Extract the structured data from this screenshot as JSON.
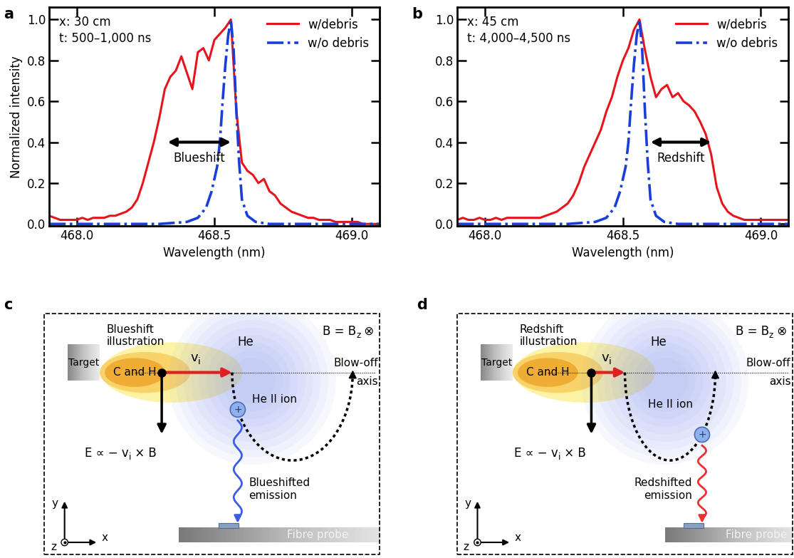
{
  "chart_data": [
    {
      "type": "line",
      "title": "a",
      "x_label": "Wavelength (nm)",
      "y_label": "Normalized intensity",
      "xlim": [
        467.9,
        469.1
      ],
      "ylim": [
        -0.01,
        1.06
      ],
      "xticks": [
        468.0,
        468.5,
        469.0
      ],
      "yticks": [
        0.0,
        0.2,
        0.4,
        0.6,
        0.8,
        1.0
      ],
      "legend": "upper right",
      "annotations": [
        {
          "text": "x: 30 cm"
        },
        {
          "text": "t: 500–1,000 ns"
        },
        {
          "text": "Blueshift",
          "x": [
            468.33,
            468.56
          ],
          "y": 0.4
        }
      ],
      "series": [
        {
          "name": "w/debris",
          "color": "#e8141c",
          "line_style": "solid",
          "x": [
            467.9,
            467.92,
            467.94,
            467.96,
            467.98,
            468.0,
            468.02,
            468.04,
            468.06,
            468.08,
            468.1,
            468.12,
            468.14,
            468.16,
            468.18,
            468.2,
            468.22,
            468.24,
            468.26,
            468.28,
            468.3,
            468.32,
            468.34,
            468.36,
            468.38,
            468.4,
            468.42,
            468.44,
            468.46,
            468.48,
            468.5,
            468.52,
            468.54,
            468.56,
            468.58,
            468.6,
            468.62,
            468.64,
            468.66,
            468.68,
            468.7,
            468.72,
            468.74,
            468.76,
            468.78,
            468.8,
            468.82,
            468.84,
            468.86,
            468.88,
            468.9,
            468.92,
            468.94,
            468.96,
            468.98,
            469.0,
            469.02,
            469.04,
            469.06,
            469.08,
            469.1
          ],
          "values": [
            0.04,
            0.03,
            0.02,
            0.02,
            0.02,
            0.02,
            0.03,
            0.02,
            0.03,
            0.03,
            0.03,
            0.04,
            0.04,
            0.05,
            0.06,
            0.08,
            0.12,
            0.2,
            0.3,
            0.4,
            0.52,
            0.66,
            0.72,
            0.75,
            0.82,
            0.74,
            0.66,
            0.84,
            0.86,
            0.8,
            0.9,
            0.93,
            0.96,
            1.0,
            0.55,
            0.3,
            0.26,
            0.24,
            0.2,
            0.22,
            0.16,
            0.14,
            0.1,
            0.08,
            0.06,
            0.05,
            0.04,
            0.03,
            0.03,
            0.02,
            0.02,
            0.02,
            0.01,
            0.01,
            0.01,
            0.01,
            0.01,
            0.0,
            0.0,
            0.0,
            0.0
          ]
        },
        {
          "name": "w/o debris",
          "color": "#1a3fd9",
          "line_style": "dashdot",
          "x": [
            467.9,
            468.0,
            468.1,
            468.2,
            468.3,
            468.4,
            468.44,
            468.47,
            468.49,
            468.51,
            468.52,
            468.53,
            468.54,
            468.55,
            468.56,
            468.57,
            468.58,
            468.59,
            468.6,
            468.62,
            468.65,
            468.7,
            468.8,
            469.0,
            469.1
          ],
          "values": [
            0.0,
            0.0,
            0.0,
            0.0,
            0.0,
            0.01,
            0.03,
            0.08,
            0.16,
            0.28,
            0.4,
            0.6,
            0.78,
            0.92,
            1.0,
            0.85,
            0.55,
            0.3,
            0.12,
            0.04,
            0.01,
            0.0,
            0.0,
            0.0,
            0.0
          ]
        }
      ]
    },
    {
      "type": "line",
      "title": "b",
      "x_label": "Wavelength (nm)",
      "xlim": [
        467.9,
        469.1
      ],
      "ylim": [
        -0.01,
        1.06
      ],
      "xticks": [
        468.0,
        468.5,
        469.0
      ],
      "yticks": [
        0.0,
        0.2,
        0.4,
        0.6,
        0.8,
        1.0
      ],
      "legend": "upper right",
      "annotations": [
        {
          "text": "x: 45 cm"
        },
        {
          "text": "t: 4,000–4,500 ns"
        },
        {
          "text": "Redshift",
          "x": [
            468.6,
            468.82
          ],
          "y": 0.4
        }
      ],
      "series": [
        {
          "name": "w/debris",
          "color": "#e8141c",
          "line_style": "solid",
          "x": [
            467.9,
            467.92,
            467.94,
            467.96,
            467.98,
            468.0,
            468.02,
            468.04,
            468.06,
            468.08,
            468.1,
            468.12,
            468.14,
            468.16,
            468.18,
            468.2,
            468.22,
            468.24,
            468.26,
            468.28,
            468.3,
            468.32,
            468.34,
            468.36,
            468.38,
            468.4,
            468.42,
            468.44,
            468.46,
            468.48,
            468.5,
            468.52,
            468.54,
            468.56,
            468.58,
            468.6,
            468.62,
            468.64,
            468.66,
            468.68,
            468.7,
            468.72,
            468.74,
            468.76,
            468.78,
            468.8,
            468.82,
            468.84,
            468.86,
            468.88,
            468.9,
            468.92,
            468.94,
            468.96,
            468.98,
            469.0,
            469.02,
            469.04,
            469.06,
            469.08,
            469.1
          ],
          "values": [
            0.02,
            0.03,
            0.02,
            0.02,
            0.03,
            0.02,
            0.02,
            0.03,
            0.02,
            0.03,
            0.03,
            0.03,
            0.03,
            0.03,
            0.03,
            0.03,
            0.04,
            0.05,
            0.06,
            0.08,
            0.1,
            0.14,
            0.2,
            0.28,
            0.34,
            0.4,
            0.46,
            0.55,
            0.62,
            0.72,
            0.8,
            0.86,
            0.95,
            1.0,
            0.85,
            0.72,
            0.62,
            0.66,
            0.68,
            0.62,
            0.64,
            0.6,
            0.58,
            0.55,
            0.5,
            0.44,
            0.34,
            0.18,
            0.1,
            0.06,
            0.04,
            0.03,
            0.02,
            0.02,
            0.02,
            0.02,
            0.02,
            0.02,
            0.02,
            0.02,
            0.02
          ]
        },
        {
          "name": "w/o debris",
          "color": "#1a3fd9",
          "line_style": "dashdot",
          "x": [
            467.9,
            468.0,
            468.1,
            468.2,
            468.3,
            468.4,
            468.44,
            468.47,
            468.49,
            468.51,
            468.52,
            468.53,
            468.54,
            468.55,
            468.56,
            468.57,
            468.58,
            468.59,
            468.6,
            468.62,
            468.65,
            468.7,
            468.8,
            469.0,
            469.1
          ],
          "values": [
            0.0,
            0.0,
            0.0,
            0.0,
            0.0,
            0.01,
            0.03,
            0.08,
            0.16,
            0.28,
            0.4,
            0.6,
            0.78,
            0.92,
            1.0,
            0.85,
            0.55,
            0.3,
            0.12,
            0.04,
            0.01,
            0.0,
            0.0,
            0.0,
            0.0
          ]
        }
      ]
    }
  ],
  "diagrams": [
    {
      "panel": "c",
      "title": "Blueshift\nillustration",
      "field": [
        {
          "text": "B = B"
        },
        {
          "text": "z",
          "sub": true
        },
        {
          "text": " ⊗"
        }
      ],
      "target": "Target",
      "debris": "C and H",
      "gas": "He",
      "velocity": [
        {
          "text": "v"
        },
        {
          "text": "i",
          "sub": true
        }
      ],
      "axis_label": "Blow-off\naxis",
      "ion": "He II ion",
      "ion_charge": "+",
      "field_E": [
        {
          "text": "E ∝ − v"
        },
        {
          "text": "i",
          "sub": true
        },
        {
          "text": " × B"
        }
      ],
      "emission": "Blueshifted\nemission",
      "color": "#3a5ce8",
      "probe": "Fibre probe",
      "coords": {
        "x": "x",
        "y": "y",
        "z": "z"
      }
    },
    {
      "panel": "d",
      "title": "Redshift\nillustration",
      "field": [
        {
          "text": "B = B"
        },
        {
          "text": "z",
          "sub": true
        },
        {
          "text": " ⊗"
        }
      ],
      "target": "Target",
      "debris": "C and H",
      "gas": "He",
      "velocity": [
        {
          "text": "v"
        },
        {
          "text": "i",
          "sub": true
        }
      ],
      "axis_label": "Blow-off\naxis",
      "ion": "He II ion",
      "ion_charge": "+",
      "field_E": [
        {
          "text": "E ∝ − v"
        },
        {
          "text": "i",
          "sub": true
        },
        {
          "text": " × B"
        }
      ],
      "emission": "Redshifted\nemission",
      "color": "#ee3030",
      "probe": "Fibre probe",
      "coords": {
        "x": "x",
        "y": "y",
        "z": "z"
      }
    }
  ]
}
